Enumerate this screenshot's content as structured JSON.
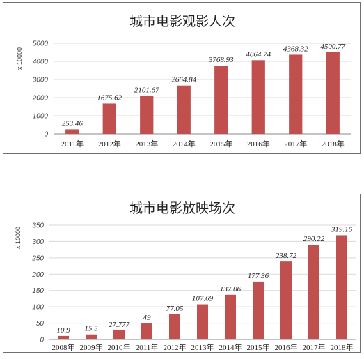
{
  "chart_data": [
    {
      "type": "bar",
      "title": "城市电影观影人次",
      "ylabel": "x 10000",
      "xlabel": "",
      "categories": [
        "2011年",
        "2012年",
        "2013年",
        "2014年",
        "2015年",
        "2016年",
        "2017年",
        "2018年"
      ],
      "values": [
        253.46,
        1675.62,
        2101.67,
        2664.84,
        3768.93,
        4064.74,
        4368.32,
        4500.77
      ],
      "data_labels": [
        "253.46",
        "1675.62",
        "2101.67",
        "2664.84",
        "3768.93",
        "4064.74",
        "4368.32",
        "4500.77"
      ],
      "ylim": [
        0,
        5000
      ],
      "yticks": [
        0,
        1000,
        2000,
        3000,
        4000,
        5000
      ],
      "grid": true,
      "legend": "none",
      "bar_color": "#c0504d"
    },
    {
      "type": "bar",
      "title": "城市电影放映场次",
      "ylabel": "x 10000",
      "xlabel": "",
      "categories": [
        "2008年",
        "2009年",
        "2010年",
        "2011年",
        "2012年",
        "2013年",
        "2014年",
        "2015年",
        "2016年",
        "2017年",
        "2018年"
      ],
      "values": [
        10.9,
        15.5,
        27.777,
        49,
        77.05,
        107.69,
        137.06,
        177.36,
        238.72,
        290.22,
        319.16
      ],
      "data_labels": [
        "10.9",
        "15.5",
        "27.777",
        "49",
        "77.05",
        "107.69",
        "137.06",
        "177.36",
        "238.72",
        "290.22",
        "319.16"
      ],
      "ylim": [
        0,
        350
      ],
      "yticks": [
        0,
        50,
        100,
        150,
        200,
        250,
        300,
        350
      ],
      "grid": true,
      "legend": "none",
      "bar_color": "#c0504d"
    }
  ]
}
